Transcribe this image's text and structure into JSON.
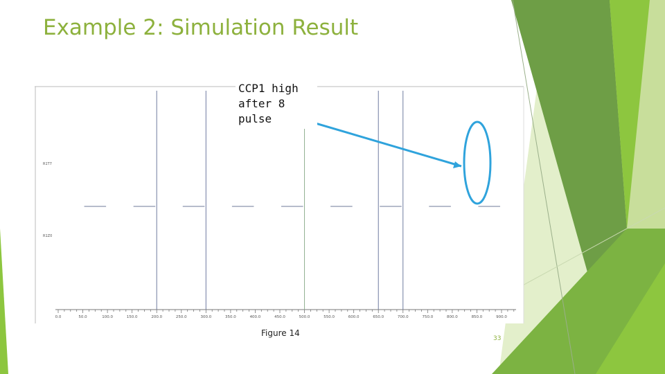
{
  "slide": {
    "title": "Example 2: Simulation Result",
    "annotation": "CCP1 high\nafter 8\npulse",
    "caption": "Figure 14",
    "slide_number": "33"
  },
  "colors": {
    "title": "#8DB13D",
    "pulse_line": "#6F7BA0",
    "highlight_line": "#8FB08F",
    "arrow": "#2FA3DC",
    "green_dark": "#6A9F3A",
    "green_mid": "#8DC63F",
    "green_light": "#D8E8B8"
  },
  "chart_data": {
    "type": "line",
    "title": "",
    "xlabel": "",
    "ylabel": "",
    "xlim": [
      0,
      950
    ],
    "x_ticks": [
      "0.0",
      "50.0",
      "100.0",
      "150.0",
      "200.0",
      "250.0",
      "300.0",
      "350.0",
      "400.0",
      "450.0",
      "500.0",
      "550.0",
      "600.0",
      "650.0",
      "700.0",
      "750.0",
      "800.0",
      "850.0",
      "900.0"
    ],
    "y_labels": [
      "R1T7",
      "R1Z0"
    ],
    "pulse_edges": [
      200,
      300,
      500,
      650,
      700
    ],
    "highlight_edge": 500,
    "low_segments": [
      [
        50,
        100
      ],
      [
        150,
        200
      ],
      [
        250,
        300
      ],
      [
        350,
        400
      ],
      [
        450,
        500
      ],
      [
        550,
        600
      ],
      [
        650,
        700
      ],
      [
        750,
        800
      ],
      [
        850,
        900
      ]
    ]
  }
}
